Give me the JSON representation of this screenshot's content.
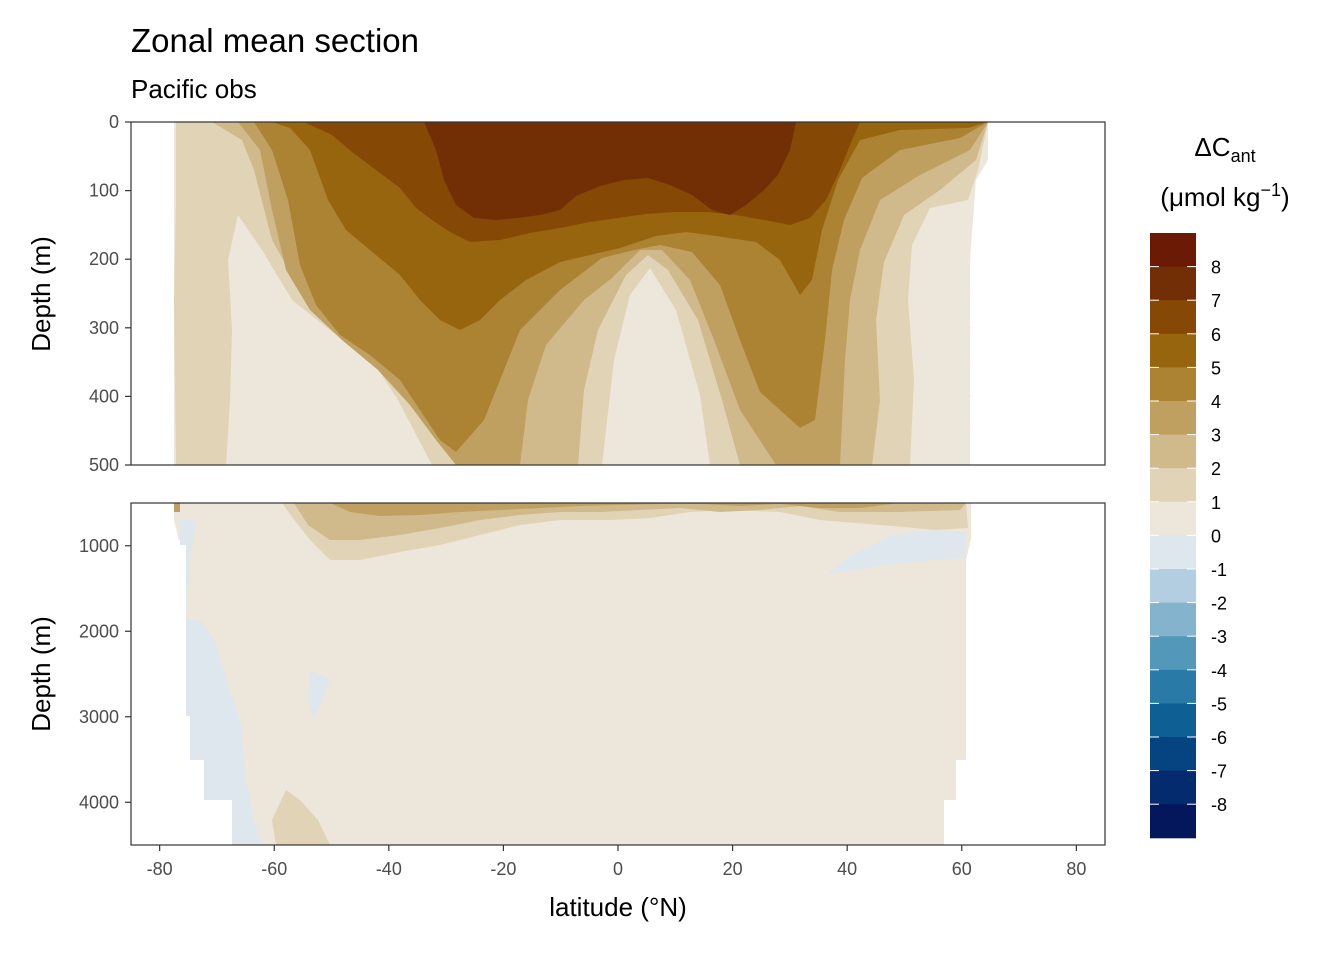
{
  "chart": {
    "title": "Zonal mean section",
    "subtitle": "Pacific obs",
    "xlabel": "latitude (°N)",
    "ylabel": "Depth (m)",
    "legend_title_main": "ΔC",
    "legend_title_sub": "ant",
    "legend_unit_open": "(μmol kg",
    "legend_unit_sup": "−1",
    "legend_unit_close": ")"
  },
  "chart_data": {
    "type": "heatmap",
    "title": "Zonal mean section",
    "subtitle": "Pacific obs",
    "xlabel": "latitude (°N)",
    "ylabel": "Depth (m)",
    "xlim": [
      -85,
      85
    ],
    "x_ticks": [
      -80,
      -60,
      -40,
      -20,
      0,
      20,
      40,
      60,
      80
    ],
    "x_tick_labels": [
      "-80",
      "-60",
      "-40",
      "-20",
      "0",
      "20",
      "40",
      "60",
      "80"
    ],
    "panels": [
      {
        "name": "upper",
        "ylim": [
          500,
          0
        ],
        "y_ticks": [
          0,
          100,
          200,
          300,
          400,
          500
        ],
        "y_tick_labels": [
          "0",
          "100",
          "200",
          "300",
          "400",
          "500"
        ]
      },
      {
        "name": "lower",
        "ylim": [
          4500,
          500
        ],
        "y_ticks": [
          1000,
          2000,
          3000,
          4000
        ],
        "y_tick_labels": [
          "1000",
          "2000",
          "3000",
          "4000"
        ]
      }
    ],
    "legend": {
      "placement": "right",
      "title": "ΔCant (μmol kg−1)",
      "labels": [
        "8",
        "7",
        "6",
        "5",
        "4",
        "3",
        "2",
        "1",
        "0",
        "-1",
        "-2",
        "-3",
        "-4",
        "-5",
        "-6",
        "-7",
        "-8"
      ],
      "bins": [
        {
          "from": 8,
          "to": 9,
          "color": "#6b1a05"
        },
        {
          "from": 7,
          "to": 8,
          "color": "#722f06"
        },
        {
          "from": 6,
          "to": 7,
          "color": "#854905"
        },
        {
          "from": 5,
          "to": 6,
          "color": "#98650f"
        },
        {
          "from": 4,
          "to": 5,
          "color": "#ac8233"
        },
        {
          "from": 3,
          "to": 4,
          "color": "#c0a060"
        },
        {
          "from": 2,
          "to": 3,
          "color": "#d0ba8c"
        },
        {
          "from": 1,
          "to": 2,
          "color": "#e1d3b6"
        },
        {
          "from": 0,
          "to": 1,
          "color": "#ece6db"
        },
        {
          "from": -1,
          "to": 0,
          "color": "#dde7ed"
        },
        {
          "from": -2,
          "to": -1,
          "color": "#b2cee0"
        },
        {
          "from": -3,
          "to": -2,
          "color": "#84b3cd"
        },
        {
          "from": -4,
          "to": -3,
          "color": "#5398b9"
        },
        {
          "from": -5,
          "to": -4,
          "color": "#2a7aa7"
        },
        {
          "from": -6,
          "to": -5,
          "color": "#0d5f94"
        },
        {
          "from": -7,
          "to": -6,
          "color": "#054381"
        },
        {
          "from": -8,
          "to": -7,
          "color": "#042b6d"
        },
        {
          "from": -9,
          "to": -8,
          "color": "#04175c"
        }
      ]
    },
    "field_upper": {
      "description_lat": [
        -78,
        -70,
        -62,
        -52,
        -40,
        -30,
        -20,
        -10,
        0,
        10,
        20,
        30,
        40,
        50,
        56,
        62
      ],
      "depths": [
        0,
        50,
        100,
        150,
        200,
        250,
        300,
        350,
        400,
        450,
        500
      ],
      "values": [
        [
          1.5,
          2.5,
          4.5,
          6.0,
          7.0,
          8.0,
          8.0,
          8.0,
          8.0,
          8.0,
          8.0,
          8.0,
          6.0,
          5.0,
          5.0,
          5.0
        ],
        [
          1.0,
          1.5,
          4.0,
          5.5,
          6.5,
          7.5,
          7.5,
          7.5,
          7.5,
          7.5,
          7.5,
          7.0,
          5.5,
          4.5,
          4.5,
          4.5
        ],
        [
          0.5,
          1.0,
          3.0,
          5.0,
          6.0,
          7.0,
          7.0,
          6.5,
          6.5,
          6.5,
          6.5,
          6.5,
          5.0,
          3.5,
          3.0,
          2.5
        ],
        [
          0.5,
          0.5,
          2.5,
          4.5,
          6.0,
          7.0,
          6.0,
          5.5,
          5.5,
          5.0,
          6.0,
          5.5,
          4.0,
          2.5,
          1.5,
          1.0
        ],
        [
          0.5,
          0.5,
          2.0,
          4.0,
          5.5,
          6.5,
          5.5,
          4.5,
          4.0,
          3.0,
          5.0,
          5.0,
          3.5,
          2.0,
          1.0,
          1.0
        ],
        [
          0.5,
          0.5,
          1.5,
          3.0,
          5.0,
          6.0,
          5.0,
          4.0,
          3.0,
          2.0,
          4.0,
          4.5,
          3.5,
          1.5,
          1.0,
          0.5
        ],
        [
          0.5,
          0.5,
          1.5,
          3.0,
          4.5,
          5.5,
          5.0,
          3.5,
          2.5,
          1.5,
          3.5,
          4.5,
          3.0,
          1.5,
          1.0,
          0.5
        ],
        [
          0.5,
          0.5,
          1.5,
          3.0,
          4.0,
          5.0,
          4.5,
          3.0,
          2.0,
          1.0,
          3.0,
          4.5,
          3.0,
          1.5,
          1.0,
          0.5
        ],
        [
          0.5,
          0.5,
          1.5,
          2.5,
          3.5,
          4.5,
          4.0,
          2.5,
          2.0,
          0.5,
          2.5,
          4.0,
          3.0,
          1.5,
          0.5,
          0.5
        ],
        [
          0.5,
          0.5,
          1.5,
          2.5,
          3.0,
          4.0,
          3.5,
          2.5,
          1.5,
          0.5,
          2.0,
          3.5,
          3.0,
          1.5,
          0.5,
          0.5
        ],
        [
          0.5,
          0.5,
          1.5,
          2.5,
          3.0,
          3.5,
          3.0,
          2.0,
          1.5,
          0.5,
          2.0,
          3.0,
          2.5,
          1.5,
          0.5,
          0.5
        ]
      ]
    }
  }
}
